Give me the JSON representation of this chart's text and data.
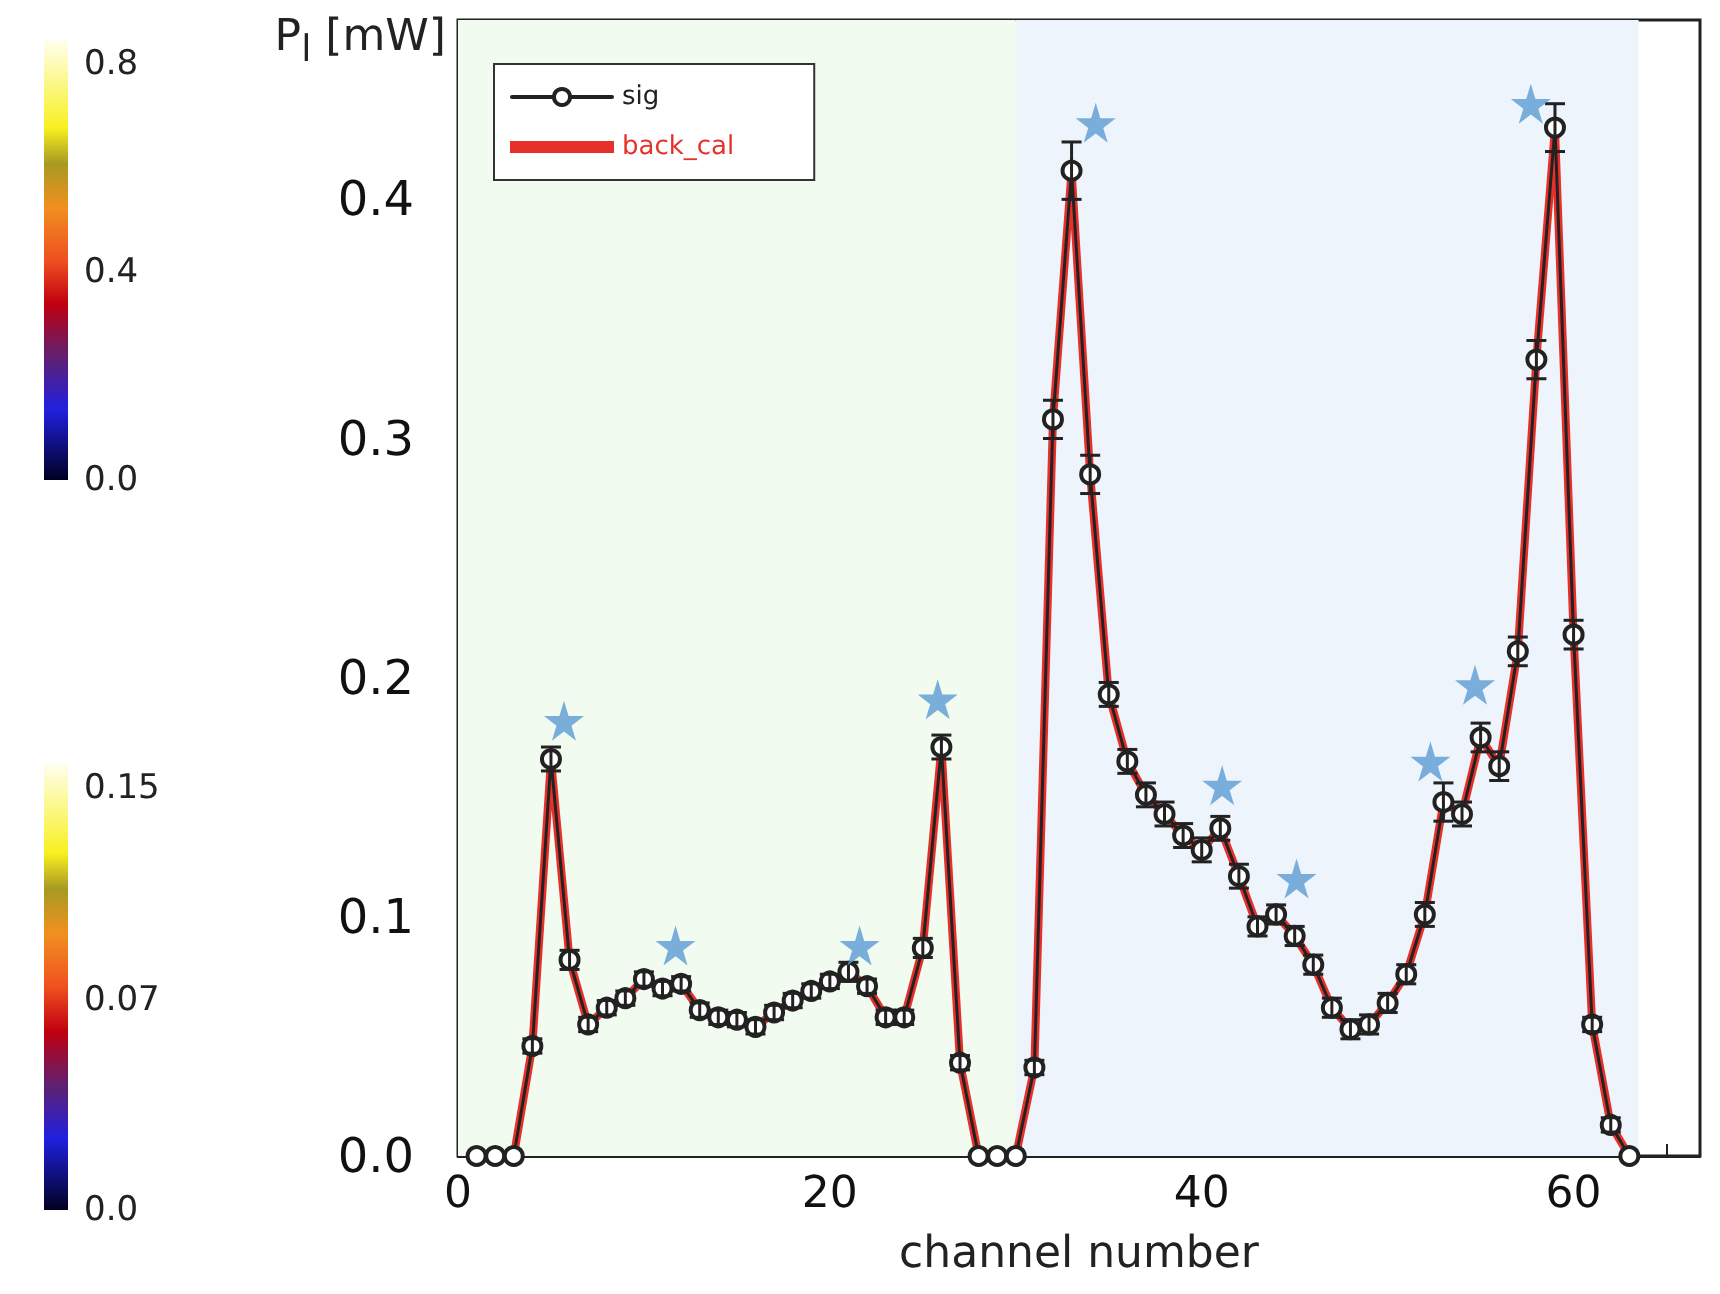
{
  "chart_data": {
    "type": "line",
    "xlabel": "channel number",
    "ylabel": "P$_{l}$ [mW]",
    "xlim": [
      0,
      66.8
    ],
    "ylim": [
      0,
      0.475
    ],
    "xticks": [
      0,
      20,
      40,
      60
    ],
    "yticks": [
      {
        "value": 0,
        "label": "0.0"
      },
      {
        "value": 0.1,
        "label": "0.1"
      },
      {
        "value": 0.2,
        "label": "0.2"
      },
      {
        "value": 0.3,
        "label": "0.3"
      },
      {
        "value": 0.4,
        "label": "0.4"
      }
    ],
    "grid": false,
    "legend": "top left",
    "x": [
      1,
      2,
      3,
      4,
      5,
      6,
      7,
      8,
      9,
      10,
      11,
      12,
      13,
      14,
      15,
      16,
      17,
      18,
      19,
      20,
      21,
      22,
      23,
      24,
      25,
      26,
      27,
      28,
      29,
      30,
      31,
      32,
      33,
      34,
      35,
      36,
      37,
      38,
      39,
      40,
      41,
      42,
      43,
      44,
      45,
      46,
      47,
      48,
      49,
      50,
      51,
      52,
      53,
      54,
      55,
      56,
      57,
      58,
      59,
      60,
      61,
      62,
      63
    ],
    "series": [
      {
        "name": "sig",
        "color": "#222222",
        "marker": "circle",
        "values": [
          0,
          0,
          0,
          0.046,
          0.166,
          0.082,
          0.055,
          0.062,
          0.066,
          0.074,
          0.07,
          0.072,
          0.061,
          0.058,
          0.057,
          0.054,
          0.06,
          0.065,
          0.069,
          0.073,
          0.077,
          0.071,
          0.058,
          0.058,
          0.087,
          0.171,
          0.039,
          0,
          0,
          0,
          0.037,
          0.308,
          0.412,
          0.285,
          0.193,
          0.165,
          0.151,
          0.143,
          0.134,
          0.128,
          0.137,
          0.117,
          0.096,
          0.101,
          0.092,
          0.08,
          0.062,
          0.053,
          0.055,
          0.064,
          0.076,
          0.101,
          0.148,
          0.143,
          0.175,
          0.163,
          0.211,
          0.333,
          0.43,
          0.218,
          0.055,
          0.013,
          0
        ],
        "errors": [
          null,
          null,
          null,
          0.003,
          0.005,
          0.004,
          0.003,
          0.003,
          0.003,
          0.003,
          0.003,
          0.003,
          0.003,
          0.003,
          0.003,
          0.003,
          0.003,
          0.003,
          0.003,
          0.003,
          0.004,
          0.003,
          0.003,
          0.003,
          0.004,
          0.005,
          0.003,
          null,
          null,
          null,
          0.003,
          0.008,
          0.012,
          0.008,
          0.005,
          0.005,
          0.005,
          0.005,
          0.005,
          0.005,
          0.005,
          0.005,
          0.004,
          0.004,
          0.004,
          0.004,
          0.004,
          0.004,
          0.004,
          0.004,
          0.004,
          0.005,
          0.008,
          0.005,
          0.006,
          0.006,
          0.006,
          0.008,
          0.01,
          0.006,
          0.003,
          0.003,
          null
        ]
      },
      {
        "name": "back_cal",
        "color": "#e8302a",
        "marker": "none",
        "values": [
          0,
          0,
          0,
          0.046,
          0.166,
          0.082,
          0.055,
          0.062,
          0.066,
          0.074,
          0.07,
          0.072,
          0.061,
          0.058,
          0.057,
          0.054,
          0.06,
          0.065,
          0.069,
          0.073,
          0.077,
          0.071,
          0.058,
          0.058,
          0.087,
          0.171,
          0.039,
          0,
          0,
          0,
          0.037,
          0.308,
          0.412,
          0.285,
          0.193,
          0.165,
          0.151,
          0.143,
          0.134,
          0.128,
          0.137,
          0.117,
          0.096,
          0.101,
          0.092,
          0.08,
          0.062,
          0.053,
          0.055,
          0.064,
          0.076,
          0.101,
          0.148,
          0.143,
          0.175,
          0.163,
          0.211,
          0.333,
          0.43,
          0.218,
          0.055,
          0.013,
          0
        ]
      },
      {
        "type": "scatter",
        "color": "#5b9bd5",
        "marker": "star",
        "x": [
          5.7,
          11.7,
          21.6,
          25.8,
          34.3,
          41.1,
          45.1,
          52.3,
          54.7,
          57.7
        ],
        "values": [
          0.182,
          0.088,
          0.088,
          0.191,
          0.432,
          0.155,
          0.116,
          0.165,
          0.197,
          0.44
        ]
      }
    ],
    "bands": [
      {
        "axis": "x",
        "from": 0,
        "to": 30,
        "color": "#f1fbef"
      },
      {
        "axis": "x",
        "from": 30,
        "to": 63.5,
        "color": "#eef4fb"
      }
    ],
    "annotations": [
      "0.8",
      "0.4",
      "0.0",
      "0.15",
      "0.07",
      "0.0"
    ]
  }
}
